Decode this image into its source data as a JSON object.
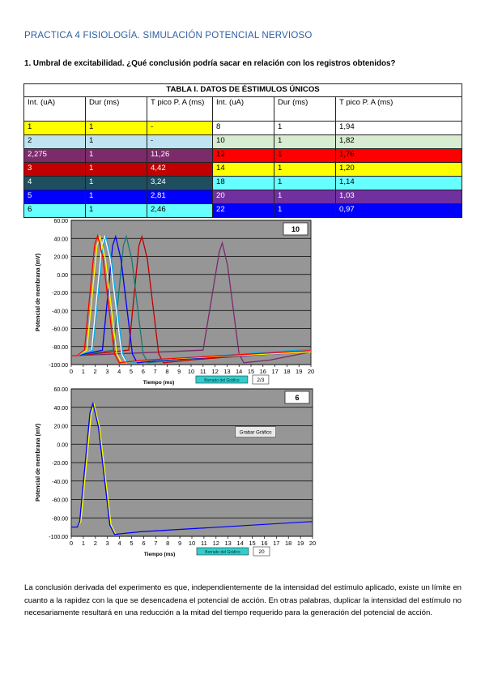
{
  "title": "PRACTICA 4 FISIOLOGÍA. SIMULACIÓN POTENCIAL NERVIOSO",
  "question": "1. Umbral de excitabilidad. ¿Qué conclusión podría sacar en relación con los registros obtenidos?",
  "table": {
    "caption": "TABLA I. DATOS DE ÉSTIMULOS ÚNICOS",
    "headers": [
      "Int. (uA)",
      "Dur (ms)",
      "T pico P. A (ms)",
      "Int. (uA)",
      "Dur (ms)",
      "T pico P. A (ms)"
    ],
    "rows": [
      {
        "cells": [
          "1",
          "1",
          "-",
          "8",
          "1",
          "1,94"
        ],
        "colors": [
          "#ffff00",
          "#ffffff"
        ],
        "text": [
          "#000",
          "#000"
        ]
      },
      {
        "cells": [
          "2",
          "1",
          "-",
          "10",
          "1",
          "1,82"
        ],
        "colors": [
          "#bfe3f2",
          "#d7ecd0"
        ],
        "text": [
          "#000",
          "#000"
        ]
      },
      {
        "cells": [
          "2,275",
          "1",
          "11,26",
          "12",
          "1",
          "1,76"
        ],
        "colors": [
          "#7b2a6a",
          "#ff0000"
        ],
        "text": [
          "#fff",
          "#000"
        ]
      },
      {
        "cells": [
          "3",
          "1",
          "4,42",
          "14",
          "1",
          "1,20"
        ],
        "colors": [
          "#c00000",
          "#ffff00"
        ],
        "text": [
          "#fff",
          "#000"
        ]
      },
      {
        "cells": [
          "4",
          "1",
          "3,24",
          "18",
          "1",
          "1,14"
        ],
        "colors": [
          "#1f4e5f",
          "#66ffff"
        ],
        "text": [
          "#fff",
          "#000"
        ]
      },
      {
        "cells": [
          "5",
          "1",
          "2,81",
          "20",
          "1",
          "1,03"
        ],
        "colors": [
          "#0000ff",
          "#7030a0"
        ],
        "text": [
          "#fff",
          "#fff"
        ]
      },
      {
        "cells": [
          "6",
          "1",
          "2,46",
          "22",
          "1",
          "0,97"
        ],
        "colors": [
          "#66ffff",
          "#0000ff"
        ],
        "text": [
          "#000",
          "#fff"
        ]
      }
    ]
  },
  "chart_data": [
    {
      "type": "line",
      "tag": "10",
      "xlabel": "Tiempo (ms)",
      "ylabel": "Potencial de membrana (mV)",
      "xlim": [
        0,
        20
      ],
      "ylim": [
        -100,
        60
      ],
      "xticks": [
        "0",
        "1",
        "2",
        "3",
        "4",
        "5",
        "6",
        "7",
        "8",
        "9",
        "10",
        "11",
        "12",
        "13",
        "14",
        "15",
        "16",
        "17",
        "18",
        "19",
        "20"
      ],
      "yticks": [
        "60.00",
        "40.00",
        "20.00",
        "0.00",
        "-20.00",
        "-40.00",
        "-60.00",
        "-80.00",
        "-100.00"
      ],
      "button_label": "Borrado del Gráfico",
      "field_value": "2/3",
      "series": [
        {
          "color": "#7b2a6a",
          "peak_x": 12.6,
          "peak_y": 35
        },
        {
          "color": "#c00000",
          "peak_x": 5.9,
          "peak_y": 42
        },
        {
          "color": "#1a7a6e",
          "peak_x": 4.6,
          "peak_y": 42
        },
        {
          "color": "#0000ff",
          "peak_x": 3.7,
          "peak_y": 42
        },
        {
          "color": "#ffffff",
          "peak_x": 2.8,
          "peak_y": 42
        },
        {
          "color": "#00b0f0",
          "peak_x": 2.9,
          "peak_y": 42
        },
        {
          "color": "#ffff00",
          "peak_x": 2.4,
          "peak_y": 42
        },
        {
          "color": "#ff0000",
          "peak_x": 2.2,
          "peak_y": 43
        }
      ]
    },
    {
      "type": "line",
      "tag": "6",
      "xlabel": "Tiempo (ms)",
      "ylabel": "Potencial de membrana (mV)",
      "xlim": [
        0,
        20
      ],
      "ylim": [
        -100,
        60
      ],
      "xticks": [
        "0",
        "1",
        "2",
        "3",
        "4",
        "5",
        "6",
        "7",
        "8",
        "9",
        "10",
        "11",
        "12",
        "13",
        "14",
        "15",
        "16",
        "17",
        "18",
        "19",
        "20"
      ],
      "yticks": [
        "60.00",
        "40.00",
        "20.00",
        "0.00",
        "-20.00",
        "-40.00",
        "-60.00",
        "-80.00",
        "-100.00"
      ],
      "grabar_label": "Grabar Gráfico",
      "button_label": "Borrado del Gráfico",
      "field_value": "20",
      "series": [
        {
          "color": "#ffff00",
          "peak_x": 1.9,
          "peak_y": 43
        },
        {
          "color": "#0000ff",
          "peak_x": 1.8,
          "peak_y": 44
        }
      ]
    }
  ],
  "conclusion": "La conclusión derivada del experimento es que, independientemente de la intensidad del estímulo aplicado, existe un límite en cuanto a la rapidez con la que se desencadena el potencial de acción. En otras palabras, duplicar la intensidad del estímulo no necesariamente resultará en una reducción a la mitad del tiempo requerido para la generación del potencial de acción."
}
